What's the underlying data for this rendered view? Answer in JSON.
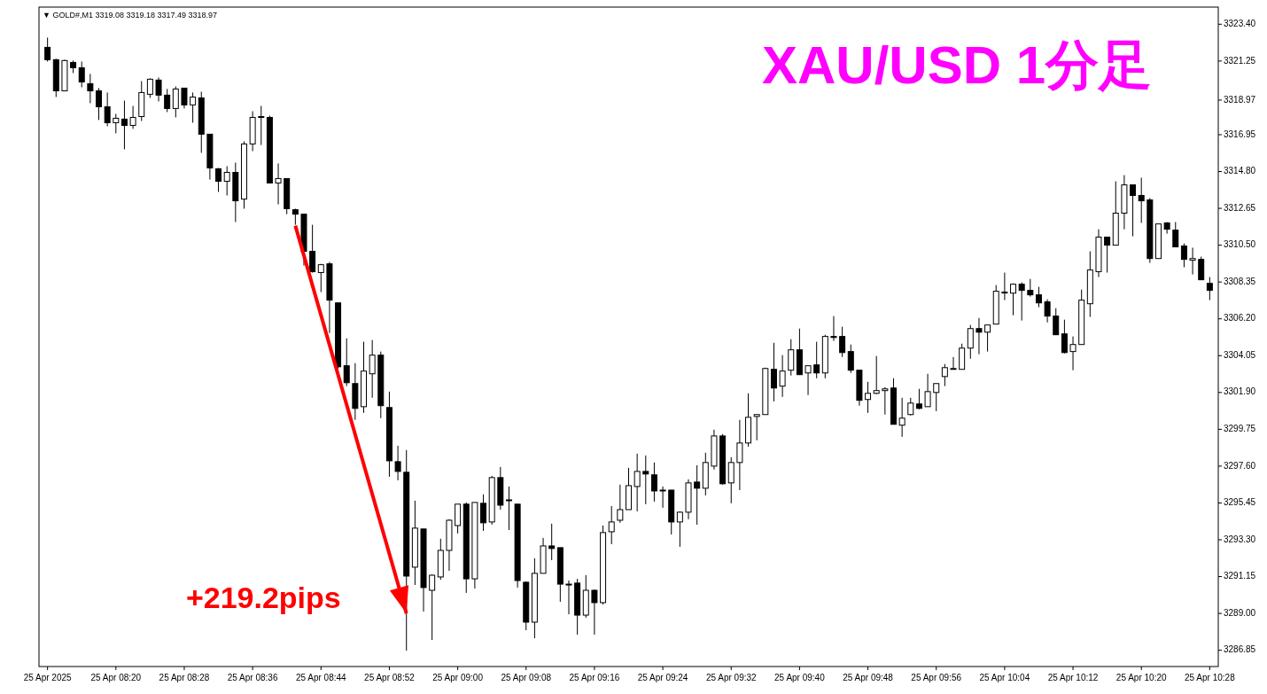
{
  "chart_data": {
    "type": "candlestick",
    "title": "XAU/USD 1分足",
    "subtitle": "▼ GOLD#,M1  3319.08 3319.18 3317.49 3318.97",
    "x": [
      "2025-04-25T08:12",
      "2025-04-25T08:13",
      "2025-04-25T08:14",
      "2025-04-25T08:15",
      "2025-04-25T08:16",
      "2025-04-25T08:17",
      "2025-04-25T08:18",
      "2025-04-25T08:19",
      "2025-04-25T08:20",
      "2025-04-25T08:21",
      "2025-04-25T08:22",
      "2025-04-25T08:23",
      "2025-04-25T08:24",
      "2025-04-25T08:25",
      "2025-04-25T08:26",
      "2025-04-25T08:27",
      "2025-04-25T08:28",
      "2025-04-25T08:29",
      "2025-04-25T08:30",
      "2025-04-25T08:31",
      "2025-04-25T08:32",
      "2025-04-25T08:33",
      "2025-04-25T08:34",
      "2025-04-25T08:35",
      "2025-04-25T08:36",
      "2025-04-25T08:37",
      "2025-04-25T08:38",
      "2025-04-25T08:39",
      "2025-04-25T08:40",
      "2025-04-25T08:41",
      "2025-04-25T08:42",
      "2025-04-25T08:43",
      "2025-04-25T08:44",
      "2025-04-25T08:45",
      "2025-04-25T08:46",
      "2025-04-25T08:47",
      "2025-04-25T08:48",
      "2025-04-25T08:49",
      "2025-04-25T08:50",
      "2025-04-25T08:51",
      "2025-04-25T08:52",
      "2025-04-25T08:53",
      "2025-04-25T08:54",
      "2025-04-25T08:55",
      "2025-04-25T08:56",
      "2025-04-25T08:57",
      "2025-04-25T08:58",
      "2025-04-25T08:59",
      "2025-04-25T09:00",
      "2025-04-25T09:01",
      "2025-04-25T09:02",
      "2025-04-25T09:03",
      "2025-04-25T09:04",
      "2025-04-25T09:05",
      "2025-04-25T09:06",
      "2025-04-25T09:07",
      "2025-04-25T09:08",
      "2025-04-25T09:09",
      "2025-04-25T09:10",
      "2025-04-25T09:11",
      "2025-04-25T09:12",
      "2025-04-25T09:13",
      "2025-04-25T09:14",
      "2025-04-25T09:15",
      "2025-04-25T09:16",
      "2025-04-25T09:17",
      "2025-04-25T09:18",
      "2025-04-25T09:19",
      "2025-04-25T09:20",
      "2025-04-25T09:21",
      "2025-04-25T09:22",
      "2025-04-25T09:23",
      "2025-04-25T09:24",
      "2025-04-25T09:25",
      "2025-04-25T09:26",
      "2025-04-25T09:27",
      "2025-04-25T09:28",
      "2025-04-25T09:29",
      "2025-04-25T09:30",
      "2025-04-25T09:31",
      "2025-04-25T09:32",
      "2025-04-25T09:33",
      "2025-04-25T09:34",
      "2025-04-25T09:35",
      "2025-04-25T09:36",
      "2025-04-25T09:37",
      "2025-04-25T09:38",
      "2025-04-25T09:39",
      "2025-04-25T09:40",
      "2025-04-25T09:41",
      "2025-04-25T09:42",
      "2025-04-25T09:43",
      "2025-04-25T09:44",
      "2025-04-25T09:45",
      "2025-04-25T09:46",
      "2025-04-25T09:47",
      "2025-04-25T09:48",
      "2025-04-25T09:49",
      "2025-04-25T09:50",
      "2025-04-25T09:51",
      "2025-04-25T09:52",
      "2025-04-25T09:53",
      "2025-04-25T09:54",
      "2025-04-25T09:55",
      "2025-04-25T09:56",
      "2025-04-25T09:57",
      "2025-04-25T09:58",
      "2025-04-25T09:59",
      "2025-04-25T10:00",
      "2025-04-25T10:01",
      "2025-04-25T10:02",
      "2025-04-25T10:03",
      "2025-04-25T10:04",
      "2025-04-25T10:05",
      "2025-04-25T10:06",
      "2025-04-25T10:07",
      "2025-04-25T10:08",
      "2025-04-25T10:09",
      "2025-04-25T10:10",
      "2025-04-25T10:11",
      "2025-04-25T10:12",
      "2025-04-25T10:13",
      "2025-04-25T10:14",
      "2025-04-25T10:15",
      "2025-04-25T10:16",
      "2025-04-25T10:17",
      "2025-04-25T10:18",
      "2025-04-25T10:19",
      "2025-04-25T10:20",
      "2025-04-25T10:21",
      "2025-04-25T10:22",
      "2025-04-25T10:23",
      "2025-04-25T10:24",
      "2025-04-25T10:25",
      "2025-04-25T10:26",
      "2025-04-25T10:27",
      "2025-04-25T10:28"
    ],
    "ohlc": [
      [
        3322.05,
        3322.62,
        3321.22,
        3321.33
      ],
      [
        3321.33,
        3321.38,
        3319.15,
        3319.51
      ],
      [
        3319.51,
        3321.33,
        3319.51,
        3321.28
      ],
      [
        3321.17,
        3321.28,
        3320.55,
        3320.86
      ],
      [
        3320.86,
        3321.22,
        3319.72,
        3320.03
      ],
      [
        3319.93,
        3320.5,
        3318.79,
        3319.51
      ],
      [
        3319.51,
        3319.67,
        3317.81,
        3318.58
      ],
      [
        3318.58,
        3319.41,
        3317.44,
        3317.65
      ],
      [
        3317.65,
        3318.17,
        3317.03,
        3317.91
      ],
      [
        3317.86,
        3318.94,
        3316.1,
        3317.49
      ],
      [
        3317.49,
        3318.63,
        3317.29,
        3317.96
      ],
      [
        3318.01,
        3320.08,
        3317.75,
        3319.41
      ],
      [
        3319.31,
        3320.24,
        3319.1,
        3320.19
      ],
      [
        3320.14,
        3320.29,
        3318.89,
        3319.26
      ],
      [
        3319.26,
        3319.62,
        3318.27,
        3318.48
      ],
      [
        3318.48,
        3319.77,
        3317.96,
        3319.62
      ],
      [
        3319.67,
        3319.67,
        3318.48,
        3318.69
      ],
      [
        3318.69,
        3319.41,
        3317.65,
        3319.15
      ],
      [
        3319.1,
        3319.46,
        3315.89,
        3316.98
      ],
      [
        3316.98,
        3316.98,
        3314.33,
        3315.01
      ],
      [
        3314.96,
        3315.01,
        3313.61,
        3314.23
      ],
      [
        3314.23,
        3315.11,
        3313.4,
        3314.75
      ],
      [
        3314.75,
        3315.32,
        3311.85,
        3313.09
      ],
      [
        3313.19,
        3316.56,
        3312.63,
        3316.41
      ],
      [
        3316.41,
        3318.32,
        3315.99,
        3317.96
      ],
      [
        3318.01,
        3318.63,
        3316.35,
        3318.01
      ],
      [
        3317.96,
        3318.06,
        3314.13,
        3314.13
      ],
      [
        3314.13,
        3315.27,
        3312.88,
        3314.39
      ],
      [
        3314.39,
        3314.39,
        3312.31,
        3312.63
      ],
      [
        3312.57,
        3312.63,
        3311.69,
        3312.31
      ],
      [
        3312.31,
        3312.31,
        3309.31,
        3310.14
      ],
      [
        3310.14,
        3311.69,
        3308.9,
        3308.95
      ],
      [
        3308.9,
        3309.41,
        3307.76,
        3309.36
      ],
      [
        3309.41,
        3309.52,
        3305.37,
        3307.29
      ],
      [
        3307.13,
        3307.13,
        3303.3,
        3303.4
      ],
      [
        3303.46,
        3305.06,
        3302.27,
        3302.47
      ],
      [
        3302.42,
        3303.61,
        3300.3,
        3300.97
      ],
      [
        3301.07,
        3304.86,
        3300.71,
        3303.15
      ],
      [
        3302.99,
        3304.96,
        3301.59,
        3304.08
      ],
      [
        3304.08,
        3304.29,
        3300.4,
        3301.13
      ],
      [
        3301.02,
        3301.95,
        3296.98,
        3297.91
      ],
      [
        3297.86,
        3298.79,
        3296.77,
        3297.29
      ],
      [
        3297.24,
        3298.54,
        3286.83,
        3291.18
      ],
      [
        3291.7,
        3295.58,
        3290.66,
        3293.98
      ],
      [
        3293.93,
        3293.93,
        3289.11,
        3290.51
      ],
      [
        3290.35,
        3291.28,
        3287.45,
        3291.23
      ],
      [
        3291.13,
        3293.36,
        3290.97,
        3292.68
      ],
      [
        3292.68,
        3294.5,
        3291.49,
        3294.44
      ],
      [
        3294.13,
        3295.38,
        3293.67,
        3295.38
      ],
      [
        3295.38,
        3295.48,
        3290.2,
        3291.02
      ],
      [
        3291.02,
        3295.48,
        3290.45,
        3295.48
      ],
      [
        3295.43,
        3295.95,
        3293.82,
        3294.29
      ],
      [
        3294.34,
        3297.03,
        3294.18,
        3296.93
      ],
      [
        3296.93,
        3297.55,
        3295.06,
        3295.32
      ],
      [
        3295.63,
        3296.41,
        3293.87,
        3295.63
      ],
      [
        3295.38,
        3295.38,
        3290.51,
        3290.92
      ],
      [
        3290.82,
        3290.87,
        3288.02,
        3288.49
      ],
      [
        3288.49,
        3292.22,
        3287.55,
        3291.34
      ],
      [
        3291.34,
        3293.41,
        3291.34,
        3292.94
      ],
      [
        3292.94,
        3294.24,
        3292.11,
        3292.79
      ],
      [
        3292.84,
        3292.84,
        3289.68,
        3290.71
      ],
      [
        3290.71,
        3290.92,
        3288.95,
        3290.71
      ],
      [
        3290.77,
        3291.02,
        3287.76,
        3288.9
      ],
      [
        3288.9,
        3291.23,
        3288.75,
        3290.35
      ],
      [
        3290.35,
        3290.4,
        3287.76,
        3289.63
      ],
      [
        3289.63,
        3294.13,
        3289.52,
        3293.72
      ],
      [
        3293.77,
        3295.27,
        3293.04,
        3294.34
      ],
      [
        3294.44,
        3296.52,
        3294.29,
        3295.06
      ],
      [
        3295.06,
        3297.5,
        3295.06,
        3296.46
      ],
      [
        3296.41,
        3298.33,
        3294.96,
        3297.29
      ],
      [
        3297.29,
        3298.22,
        3295.38,
        3297.14
      ],
      [
        3297.09,
        3297.81,
        3295.53,
        3296.15
      ],
      [
        3296.2,
        3296.41,
        3295.17,
        3296.2
      ],
      [
        3296.2,
        3296.2,
        3293.61,
        3294.34
      ],
      [
        3294.34,
        3294.96,
        3292.89,
        3294.91
      ],
      [
        3294.91,
        3296.83,
        3294.5,
        3296.62
      ],
      [
        3296.67,
        3297.65,
        3294.18,
        3296.31
      ],
      [
        3296.31,
        3298.38,
        3295.89,
        3297.81
      ],
      [
        3297.6,
        3299.73,
        3297.4,
        3299.36
      ],
      [
        3299.36,
        3299.47,
        3296.52,
        3296.57
      ],
      [
        3296.62,
        3298.12,
        3295.43,
        3297.81
      ],
      [
        3297.81,
        3300.3,
        3296.2,
        3298.95
      ],
      [
        3298.95,
        3301.85,
        3298.74,
        3300.45
      ],
      [
        3300.5,
        3300.61,
        3299.11,
        3300.61
      ],
      [
        3300.61,
        3303.35,
        3300.61,
        3303.3
      ],
      [
        3303.25,
        3304.8,
        3301.38,
        3302.16
      ],
      [
        3302.27,
        3304.08,
        3301.64,
        3303.15
      ],
      [
        3303.2,
        3305.01,
        3302.89,
        3304.39
      ],
      [
        3304.39,
        3305.63,
        3302.94,
        3302.94
      ],
      [
        3303.04,
        3303.46,
        3301.75,
        3303.46
      ],
      [
        3303.51,
        3304.86,
        3302.73,
        3303.04
      ],
      [
        3303.04,
        3305.27,
        3302.73,
        3305.17
      ],
      [
        3305.17,
        3306.36,
        3304.91,
        3305.11
      ],
      [
        3305.17,
        3305.74,
        3303.97,
        3304.23
      ],
      [
        3304.29,
        3304.7,
        3303.04,
        3303.2
      ],
      [
        3303.2,
        3303.2,
        3301.13,
        3301.44
      ],
      [
        3301.49,
        3302.52,
        3300.71,
        3301.85
      ],
      [
        3301.85,
        3304.03,
        3301.8,
        3302.01
      ],
      [
        3302.01,
        3302.21,
        3300.61,
        3302.11
      ],
      [
        3302.16,
        3302.73,
        3300.04,
        3300.04
      ],
      [
        3299.99,
        3301.59,
        3299.31,
        3300.4
      ],
      [
        3300.61,
        3301.59,
        3300.56,
        3301.28
      ],
      [
        3301.23,
        3302.11,
        3300.92,
        3300.97
      ],
      [
        3301.07,
        3302.99,
        3301.07,
        3301.95
      ],
      [
        3301.9,
        3302.42,
        3300.81,
        3302.42
      ],
      [
        3302.83,
        3303.56,
        3302.27,
        3303.35
      ],
      [
        3303.3,
        3303.97,
        3303.3,
        3303.3
      ],
      [
        3303.25,
        3304.75,
        3303.25,
        3304.49
      ],
      [
        3304.49,
        3305.84,
        3303.87,
        3305.63
      ],
      [
        3305.63,
        3306.25,
        3304.13,
        3305.42
      ],
      [
        3305.42,
        3305.84,
        3304.29,
        3305.84
      ],
      [
        3305.89,
        3308.17,
        3305.89,
        3307.81
      ],
      [
        3307.76,
        3308.9,
        3307.29,
        3307.76
      ],
      [
        3307.7,
        3308.27,
        3306.41,
        3308.22
      ],
      [
        3308.22,
        3308.33,
        3306.1,
        3307.86
      ],
      [
        3307.86,
        3308.53,
        3307.5,
        3307.6
      ],
      [
        3307.6,
        3308.07,
        3306.88,
        3307.13
      ],
      [
        3307.19,
        3307.34,
        3305.99,
        3306.36
      ],
      [
        3306.36,
        3306.82,
        3305.27,
        3305.27
      ],
      [
        3305.32,
        3306.15,
        3304.18,
        3304.23
      ],
      [
        3304.29,
        3305.17,
        3303.2,
        3304.7
      ],
      [
        3304.7,
        3307.91,
        3304.7,
        3307.29
      ],
      [
        3307.08,
        3310.14,
        3306.31,
        3309.05
      ],
      [
        3308.95,
        3311.43,
        3308.64,
        3310.97
      ],
      [
        3310.97,
        3310.97,
        3308.9,
        3310.5
      ],
      [
        3310.5,
        3314.23,
        3310.5,
        3312.37
      ],
      [
        3312.37,
        3314.59,
        3311.43,
        3314.02
      ],
      [
        3314.02,
        3314.02,
        3311.02,
        3313.4
      ],
      [
        3313.4,
        3314.44,
        3311.8,
        3313.09
      ],
      [
        3313.14,
        3313.25,
        3309.47,
        3309.72
      ],
      [
        3309.72,
        3311.74,
        3309.72,
        3311.74
      ],
      [
        3311.8,
        3311.85,
        3311.17,
        3311.43
      ],
      [
        3311.38,
        3311.85,
        3310.4,
        3310.4
      ],
      [
        3310.45,
        3310.6,
        3309.21,
        3309.67
      ],
      [
        3309.62,
        3310.35,
        3308.79,
        3309.72
      ],
      [
        3309.67,
        3309.83,
        3308.48,
        3308.48
      ],
      [
        3308.27,
        3308.64,
        3307.29,
        3307.86
      ]
    ],
    "series": [
      {
        "type": "line",
        "color": "#ff0000",
        "x": [
          "2025-04-25T08:41",
          "2025-04-25T08:54"
        ],
        "values": [
          3311.64,
          3289.0
        ]
      }
    ],
    "annotations": [
      {
        "text": "+219.2pips",
        "x": "2025-04-25T08:54",
        "y": 3289.0
      }
    ],
    "xlim": [
      "2025-04-25T08:11",
      "2025-04-25T10:29"
    ],
    "xticks": [
      {
        "value": "2025-04-25T08:12",
        "label": "25 Apr 2025"
      },
      {
        "value": "2025-04-25T08:20",
        "label": "25 Apr 08:20"
      },
      {
        "value": "2025-04-25T08:28",
        "label": "25 Apr 08:28"
      },
      {
        "value": "2025-04-25T08:36",
        "label": "25 Apr 08:36"
      },
      {
        "value": "2025-04-25T08:44",
        "label": "25 Apr 08:44"
      },
      {
        "value": "2025-04-25T08:52",
        "label": "25 Apr 08:52"
      },
      {
        "value": "2025-04-25T09:00",
        "label": "25 Apr 09:00"
      },
      {
        "value": "2025-04-25T09:08",
        "label": "25 Apr 09:08"
      },
      {
        "value": "2025-04-25T09:16",
        "label": "25 Apr 09:16"
      },
      {
        "value": "2025-04-25T09:24",
        "label": "25 Apr 09:24"
      },
      {
        "value": "2025-04-25T09:32",
        "label": "25 Apr 09:32"
      },
      {
        "value": "2025-04-25T09:40",
        "label": "25 Apr 09:40"
      },
      {
        "value": "2025-04-25T09:48",
        "label": "25 Apr 09:48"
      },
      {
        "value": "2025-04-25T09:56",
        "label": "25 Apr 09:56"
      },
      {
        "value": "2025-04-25T10:04",
        "label": "25 Apr 10:04"
      },
      {
        "value": "2025-04-25T10:12",
        "label": "25 Apr 10:12"
      },
      {
        "value": "2025-04-25T10:20",
        "label": "25 Apr 10:20"
      },
      {
        "value": "2025-04-25T10:28",
        "label": "25 Apr 10:28"
      }
    ],
    "ylim": [
      3285.9,
      3324.4
    ],
    "yticks": [
      {
        "value": 3286.85,
        "label": "3286.85"
      },
      {
        "value": 3289.0,
        "label": "3289.00"
      },
      {
        "value": 3291.15,
        "label": "3291.15"
      },
      {
        "value": 3293.3,
        "label": "3293.30"
      },
      {
        "value": 3295.45,
        "label": "3295.45"
      },
      {
        "value": 3297.6,
        "label": "3297.60"
      },
      {
        "value": 3299.75,
        "label": "3299.75"
      },
      {
        "value": 3301.9,
        "label": "3301.90"
      },
      {
        "value": 3304.05,
        "label": "3304.05"
      },
      {
        "value": 3306.2,
        "label": "3306.20"
      },
      {
        "value": 3308.35,
        "label": "3308.35"
      },
      {
        "value": 3310.5,
        "label": "3310.50"
      },
      {
        "value": 3312.65,
        "label": "3312.65"
      },
      {
        "value": 3314.8,
        "label": "3314.80"
      },
      {
        "value": 3316.95,
        "label": "3316.95"
      },
      {
        "value": 3318.97,
        "label": "3318.97"
      },
      {
        "value": 3321.25,
        "label": "3321.25"
      },
      {
        "value": 3323.4,
        "label": "3323.40"
      }
    ]
  }
}
